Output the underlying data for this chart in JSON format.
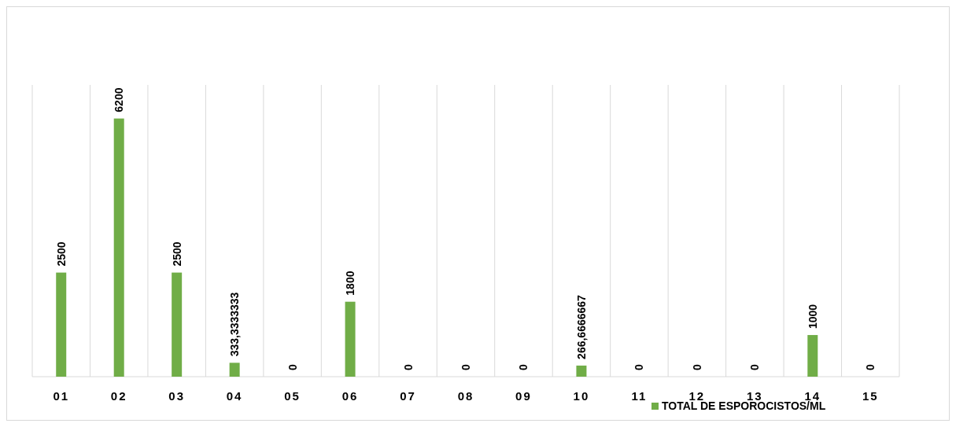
{
  "chart_data": {
    "type": "bar",
    "categories": [
      "01",
      "02",
      "03",
      "04",
      "05",
      "06",
      "07",
      "08",
      "09",
      "10",
      "11",
      "12",
      "13",
      "14",
      "15"
    ],
    "series": [
      {
        "name": "TOTAL DE ESPOROCISTOS/ML",
        "color": "#70ad47",
        "values": [
          2500,
          6200,
          2500,
          333.3333333,
          0,
          1800,
          0,
          0,
          0,
          266.6666667,
          0,
          0,
          0,
          1000,
          0
        ],
        "value_labels": [
          "2500",
          "6200",
          "2500",
          "333,3333333",
          "0",
          "1800",
          "0",
          "0",
          "0",
          "266,6666667",
          "0",
          "0",
          "0",
          "1000",
          "0"
        ]
      }
    ],
    "grid": "x",
    "legend": "bottom"
  }
}
